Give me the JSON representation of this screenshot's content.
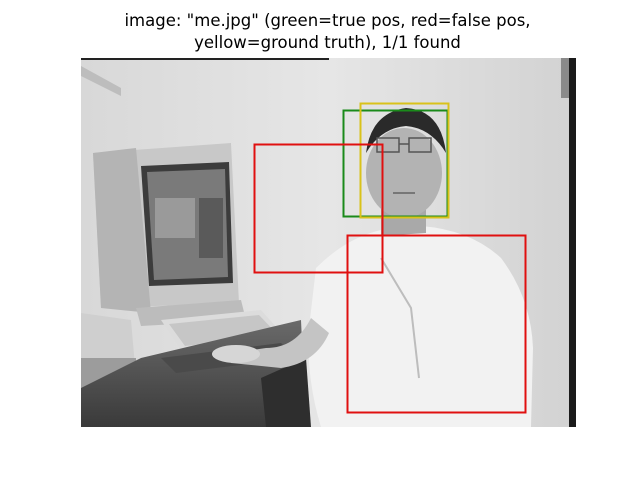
{
  "title": {
    "line1": "image: \"me.jpg\" (green=true pos, red=false pos,",
    "line2": "yellow=ground truth), 1/1 found"
  },
  "colors": {
    "true_positive": "#1a8a1a",
    "false_positive": "#e01010",
    "ground_truth": "#d9c21a"
  },
  "icons": [
    "grayscale-photo"
  ]
}
